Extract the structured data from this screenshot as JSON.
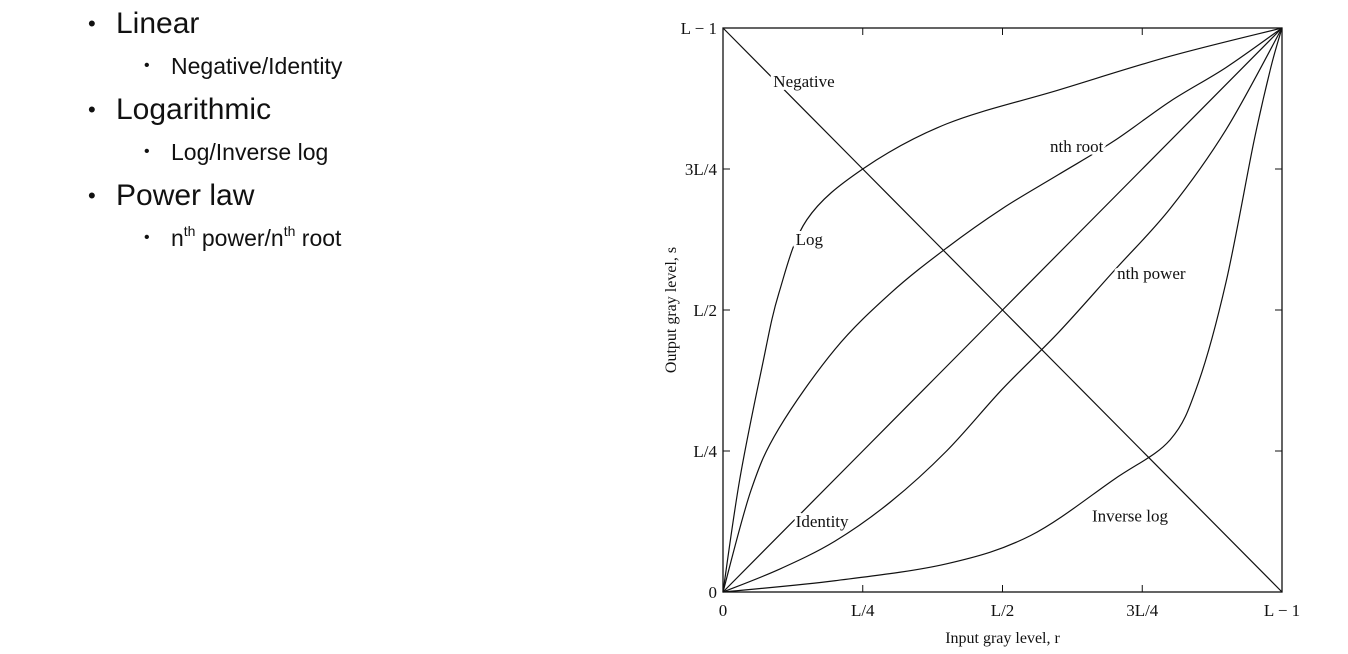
{
  "bullets": [
    {
      "label": "Linear",
      "children": [
        {
          "parts": [
            "Negative/Identity"
          ]
        }
      ]
    },
    {
      "label": "Logarithmic",
      "children": [
        {
          "parts": [
            "Log/Inverse log"
          ]
        }
      ]
    },
    {
      "label": "Power law",
      "children": [
        {
          "parts": [
            "n",
            "th",
            " power/n",
            "th",
            " root"
          ]
        }
      ]
    }
  ],
  "chart_data": {
    "type": "line",
    "xlabel": "Input gray level, r",
    "ylabel": "Output gray level, s",
    "x_ticks": [
      "0",
      "L/4",
      "L/2",
      "3L/4",
      "L − 1"
    ],
    "y_ticks": [
      "0",
      "L/4",
      "L/2",
      "3L/4",
      "L − 1"
    ],
    "xlim": [
      0,
      1
    ],
    "ylim": [
      0,
      1
    ],
    "series": [
      {
        "name": "Negative",
        "x": [
          0,
          0.25,
          0.5,
          0.75,
          1
        ],
        "y": [
          1,
          0.75,
          0.5,
          0.25,
          0
        ]
      },
      {
        "name": "Identity",
        "x": [
          0,
          0.25,
          0.5,
          0.75,
          1
        ],
        "y": [
          0,
          0.25,
          0.5,
          0.75,
          1
        ]
      },
      {
        "name": "Log",
        "x": [
          0,
          0.03,
          0.07,
          0.1,
          0.15,
          0.25,
          0.4,
          0.6,
          0.8,
          1
        ],
        "y": [
          0,
          0.2,
          0.4,
          0.53,
          0.66,
          0.75,
          0.83,
          0.89,
          0.95,
          1
        ]
      },
      {
        "name": "Inverse log",
        "x": [
          0,
          0.2,
          0.4,
          0.55,
          0.7,
          0.8,
          0.85,
          0.9,
          0.95,
          0.98,
          1
        ],
        "y": [
          0,
          0.02,
          0.05,
          0.1,
          0.2,
          0.27,
          0.37,
          0.55,
          0.8,
          0.93,
          1
        ]
      },
      {
        "name": "nth root",
        "x": [
          0,
          0.05,
          0.1,
          0.2,
          0.3,
          0.4,
          0.5,
          0.6,
          0.7,
          0.8,
          0.9,
          1
        ],
        "y": [
          0,
          0.18,
          0.29,
          0.43,
          0.53,
          0.61,
          0.68,
          0.74,
          0.8,
          0.87,
          0.93,
          1
        ]
      },
      {
        "name": "nth power",
        "x": [
          0,
          0.1,
          0.2,
          0.3,
          0.4,
          0.5,
          0.6,
          0.7,
          0.8,
          0.9,
          1
        ],
        "y": [
          0,
          0.04,
          0.09,
          0.16,
          0.25,
          0.36,
          0.46,
          0.57,
          0.68,
          0.82,
          1
        ]
      }
    ],
    "labels": [
      {
        "text": "Negative",
        "x": 0.09,
        "y": 0.895
      },
      {
        "text": "Log",
        "x": 0.13,
        "y": 0.615
      },
      {
        "text": "Identity",
        "x": 0.13,
        "y": 0.115
      },
      {
        "text": "Inverse log",
        "x": 0.66,
        "y": 0.125
      },
      {
        "text": "nth root",
        "x": 0.585,
        "y": 0.78
      },
      {
        "text": "nth power",
        "x": 0.705,
        "y": 0.555
      }
    ],
    "grid": false
  }
}
